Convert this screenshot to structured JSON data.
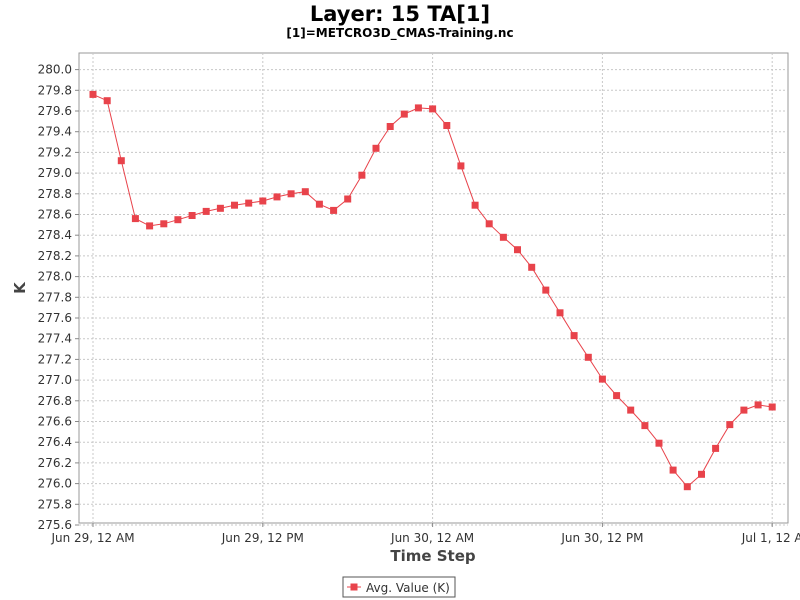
{
  "chart_data": {
    "type": "line",
    "title": "Layer: 15 TA[1]",
    "subtitle": "[1]=METCRO3D_CMAS-Training.nc",
    "xlabel": "Time Step",
    "ylabel": "K",
    "ylim": [
      275.6,
      280.1
    ],
    "yticks": [
      275.6,
      275.8,
      276.0,
      276.2,
      276.4,
      276.6,
      276.8,
      277.0,
      277.2,
      277.4,
      277.6,
      277.8,
      278.0,
      278.2,
      278.4,
      278.6,
      278.8,
      279.0,
      279.2,
      279.4,
      279.6,
      279.8,
      280.0
    ],
    "xtick_labels": [
      "Jun 29, 12 AM",
      "Jun 29, 12 PM",
      "Jun 30, 12 AM",
      "Jun 30, 12 PM",
      "Jul 1, 12 A"
    ],
    "xtick_steps": [
      0,
      12,
      24,
      36,
      48
    ],
    "grid": true,
    "legend_position": "bottom-center",
    "color": "#e8434b",
    "series": [
      {
        "name": "Avg. Value (K)",
        "x": [
          0,
          1,
          2,
          3,
          4,
          5,
          6,
          7,
          8,
          9,
          10,
          11,
          12,
          13,
          14,
          15,
          16,
          17,
          18,
          19,
          20,
          21,
          22,
          23,
          24,
          25,
          26,
          27,
          28,
          29,
          30,
          31,
          32,
          33,
          34,
          35,
          36,
          37,
          38,
          39,
          40,
          41,
          42,
          43,
          44,
          45,
          46,
          47,
          48
        ],
        "values": [
          279.76,
          279.7,
          279.12,
          278.56,
          278.49,
          278.51,
          278.55,
          278.59,
          278.63,
          278.66,
          278.69,
          278.71,
          278.73,
          278.77,
          278.8,
          278.82,
          278.7,
          278.64,
          278.75,
          278.98,
          279.24,
          279.45,
          279.57,
          279.63,
          279.62,
          279.46,
          279.07,
          278.69,
          278.51,
          278.38,
          278.26,
          278.09,
          277.87,
          277.65,
          277.43,
          277.22,
          277.01,
          276.85,
          276.71,
          276.56,
          276.39,
          276.13,
          275.97,
          276.09,
          276.34,
          276.57,
          276.71,
          276.76,
          276.74
        ]
      }
    ]
  }
}
